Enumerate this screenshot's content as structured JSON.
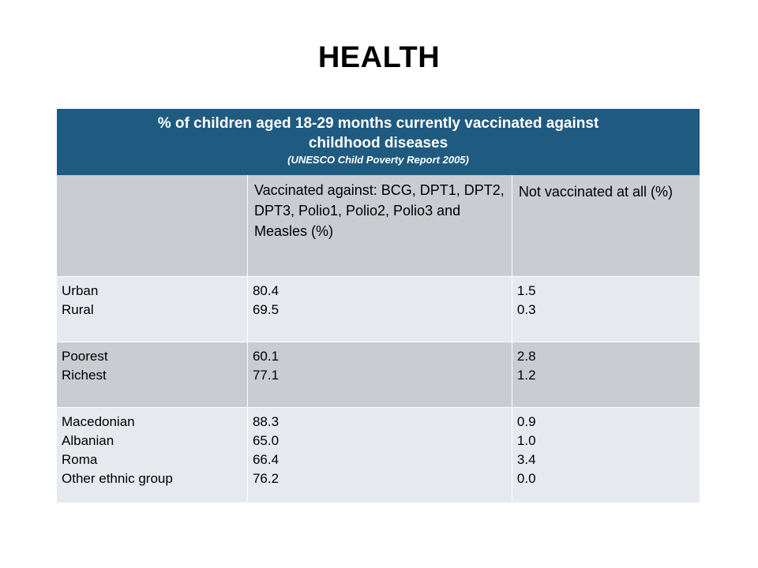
{
  "title": "HEALTH",
  "table": {
    "header_main_line1": "% of  children aged 18-29 months currently vaccinated against",
    "header_main_line2": "childhood diseases",
    "header_source": "(UNESCO Child Poverty Report 2005)",
    "columns": [
      "",
      "Vaccinated against: BCG, DPT1, DPT2, DPT3, Polio1, Polio2, Polio3 and  Measles (%)",
      "Not vaccinated at all (%)"
    ],
    "groups": [
      {
        "labels": [
          "Urban",
          "Rural"
        ],
        "vaccinated": [
          "80.4",
          "69.5"
        ],
        "not_vaccinated": [
          "1.5",
          "0.3"
        ]
      },
      {
        "labels": [
          "Poorest",
          "Richest"
        ],
        "vaccinated": [
          "60.1",
          "77.1"
        ],
        "not_vaccinated": [
          "2.8",
          "1.2"
        ]
      },
      {
        "labels": [
          "Macedonian",
          "Albanian",
          "Roma",
          "Other ethnic group"
        ],
        "vaccinated": [
          "88.3",
          "65.0",
          "66.4",
          "76.2"
        ],
        "not_vaccinated": [
          "0.9",
          "1.0",
          "3.4",
          "0.0"
        ]
      }
    ]
  },
  "colors": {
    "header_bg": "#1f5a80",
    "column_header_bg": "#c9ccd1",
    "row_light": "#e6e9ed",
    "row_dark": "#c9ccd1"
  }
}
